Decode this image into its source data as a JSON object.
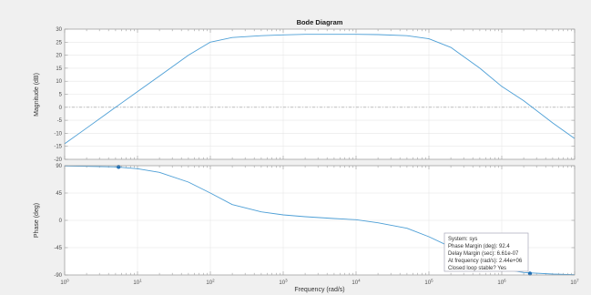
{
  "chart_data": {
    "type": "line",
    "title": "Bode Diagram",
    "xlabel": "Frequency  (rad/s)",
    "xscale": "log",
    "xlim": [
      1,
      10000000
    ],
    "x_ticks": [
      {
        "value": 1,
        "base": "10",
        "exp": "0"
      },
      {
        "value": 10,
        "base": "10",
        "exp": "1"
      },
      {
        "value": 100,
        "base": "10",
        "exp": "2"
      },
      {
        "value": 1000,
        "base": "10",
        "exp": "3"
      },
      {
        "value": 10000,
        "base": "10",
        "exp": "4"
      },
      {
        "value": 100000,
        "base": "10",
        "exp": "5"
      },
      {
        "value": 1000000,
        "base": "10",
        "exp": "6"
      },
      {
        "value": 10000000,
        "base": "10",
        "exp": "7"
      }
    ],
    "grid": true,
    "colors": {
      "line": "#4d9fd6",
      "marker": "#1f6fb5",
      "zero_line": "#9a9a9a",
      "grid": "#e6e6e6",
      "axes_bg": "#ffffff",
      "figure_bg": "#f0f0f0"
    },
    "magnitude": {
      "ylabel": "Magnitude (dB)",
      "ylim": [
        -20,
        30
      ],
      "yticks": [
        -20,
        -15,
        -10,
        -5,
        0,
        5,
        10,
        15,
        20,
        25,
        30
      ],
      "reference_line": 0,
      "series": [
        {
          "x": [
            1,
            2,
            5,
            10,
            20,
            50,
            100,
            200,
            500,
            1000,
            2000,
            5000,
            10000,
            20000,
            50000,
            100000,
            200000,
            500000,
            1000000,
            2000000,
            5000000,
            10000000
          ],
          "y": [
            -14,
            -8,
            0,
            6,
            12,
            20,
            25,
            26.8,
            27.5,
            27.8,
            28,
            28,
            28,
            27.9,
            27.5,
            26.3,
            23,
            15,
            8,
            2.5,
            -6,
            -12
          ]
        }
      ]
    },
    "phase": {
      "ylabel": "Phase (deg)",
      "ylim": [
        -90,
        90
      ],
      "yticks": [
        -90,
        -45,
        0,
        45,
        90
      ],
      "series": [
        {
          "x": [
            1,
            2,
            5,
            10,
            20,
            50,
            100,
            200,
            500,
            1000,
            2000,
            5000,
            10000,
            20000,
            50000,
            100000,
            200000,
            500000,
            1000000,
            2000000,
            5000000,
            10000000
          ],
          "y": [
            89.5,
            89,
            88,
            85,
            79,
            63,
            45,
            26,
            14,
            9,
            6,
            3,
            1,
            -4,
            -13,
            -27,
            -44,
            -66,
            -80,
            -86,
            -88.5,
            -89.5
          ]
        }
      ],
      "markers": [
        {
          "x": 5.5,
          "y": 88
        },
        {
          "x": 2440000,
          "y": -87.6
        }
      ]
    },
    "datatip": {
      "lines": [
        "System: sys",
        "Phase Margin (deg): 92.4",
        "Delay Margin (sec): 6.61e-07",
        "At frequency (rad/s): 2.44e+06",
        "Closed loop stable? Yes"
      ]
    }
  }
}
